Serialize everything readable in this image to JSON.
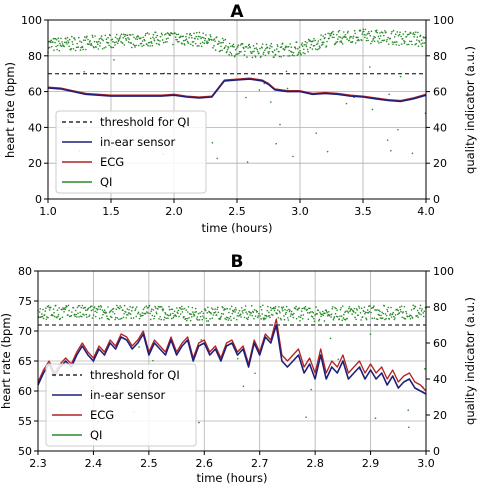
{
  "chart_data": [
    {
      "type": "line",
      "title": "A",
      "xlabel": "time (hours)",
      "ylabel": "heart rate (bpm)",
      "ylabel_right": "quality indicator (a.u.)",
      "xlim": [
        1.0,
        4.0
      ],
      "ylim": [
        0,
        100
      ],
      "ylim_right": [
        0,
        100
      ],
      "xticks": [
        "1.0",
        "1.5",
        "2.0",
        "2.5",
        "3.0",
        "3.5",
        "4.0"
      ],
      "xtick_values": [
        1.0,
        1.5,
        2.0,
        2.5,
        3.0,
        3.5,
        4.0
      ],
      "yticks": [
        "0",
        "20",
        "40",
        "60",
        "80",
        "100"
      ],
      "ytick_values": [
        0,
        20,
        40,
        60,
        80,
        100
      ],
      "yticks_right": [
        "0",
        "20",
        "40",
        "60",
        "80",
        "100"
      ],
      "grid": true,
      "legend_position": "lower-left",
      "threshold": 70,
      "series": [
        {
          "name": "threshold for QI",
          "style": "dashed",
          "color": "#000000",
          "y": 70
        },
        {
          "name": "in-ear sensor",
          "color": "#1f1f7a",
          "x": [
            1.0,
            1.1,
            1.2,
            1.3,
            1.4,
            1.5,
            1.6,
            1.7,
            1.8,
            1.9,
            2.0,
            2.1,
            2.2,
            2.3,
            2.4,
            2.5,
            2.6,
            2.7,
            2.75,
            2.8,
            2.9,
            3.0,
            3.1,
            3.2,
            3.3,
            3.4,
            3.5,
            3.6,
            3.7,
            3.8,
            3.9,
            4.0
          ],
          "values": [
            62,
            61.5,
            60,
            58.5,
            58,
            57.5,
            57.5,
            57.5,
            57.5,
            57.5,
            58,
            57,
            56.5,
            57,
            66,
            66.5,
            67,
            66,
            64,
            61,
            60,
            60,
            58.5,
            59,
            58.5,
            57.5,
            57,
            56,
            55,
            54.5,
            56,
            58
          ]
        },
        {
          "name": "ECG",
          "color": "#b22222",
          "x": [
            1.0,
            1.1,
            1.2,
            1.3,
            1.4,
            1.5,
            1.6,
            1.7,
            1.8,
            1.9,
            2.0,
            2.1,
            2.2,
            2.3,
            2.4,
            2.5,
            2.6,
            2.7,
            2.75,
            2.8,
            2.9,
            3.0,
            3.1,
            3.2,
            3.3,
            3.4,
            3.5,
            3.6,
            3.7,
            3.8,
            3.9,
            4.0
          ],
          "values": [
            62.5,
            62,
            60.5,
            59,
            58.5,
            58,
            58,
            58,
            58,
            58,
            58.5,
            57.5,
            57,
            57.5,
            66.5,
            67,
            67.5,
            66.5,
            64.5,
            61.5,
            60.5,
            60.5,
            59,
            59.5,
            59,
            58,
            57.5,
            56.5,
            55.5,
            55,
            56.5,
            58.5
          ]
        },
        {
          "name": "QI",
          "color": "#2a8a2a",
          "style": "scatter",
          "axis": "right",
          "x": [
            1.0,
            1.25,
            1.5,
            1.75,
            2.0,
            2.25,
            2.5,
            2.75,
            3.0,
            3.25,
            3.5,
            3.75,
            4.0
          ],
          "values": [
            86,
            87,
            88,
            89,
            90,
            89,
            83,
            83,
            84,
            90,
            91,
            90,
            89
          ]
        }
      ]
    },
    {
      "type": "line",
      "title": "B",
      "xlabel": "time (hours)",
      "ylabel": "heart rate (bpm)",
      "ylabel_right": "quality indicator (a.u.)",
      "xlim": [
        2.3,
        3.0
      ],
      "ylim": [
        50,
        80
      ],
      "ylim_right": [
        0,
        100
      ],
      "xticks": [
        "2.3",
        "2.4",
        "2.5",
        "2.6",
        "2.7",
        "2.8",
        "2.9",
        "3.0"
      ],
      "xtick_values": [
        2.3,
        2.4,
        2.5,
        2.6,
        2.7,
        2.8,
        2.9,
        3.0
      ],
      "yticks": [
        "50",
        "55",
        "60",
        "65",
        "70",
        "75",
        "80"
      ],
      "ytick_values": [
        50,
        55,
        60,
        65,
        70,
        75,
        80
      ],
      "yticks_right": [
        "0",
        "20",
        "40",
        "60",
        "80",
        "100"
      ],
      "ytick_values_right": [
        0,
        20,
        40,
        60,
        80,
        100
      ],
      "grid": true,
      "legend_position": "lower-left",
      "threshold": 70,
      "series": [
        {
          "name": "threshold for QI",
          "style": "dashed",
          "color": "#000000",
          "y": 70
        },
        {
          "name": "in-ear sensor",
          "color": "#1f1f7a",
          "x": [
            2.3,
            2.31,
            2.32,
            2.33,
            2.34,
            2.35,
            2.36,
            2.37,
            2.38,
            2.39,
            2.4,
            2.41,
            2.42,
            2.43,
            2.44,
            2.45,
            2.46,
            2.47,
            2.48,
            2.49,
            2.5,
            2.51,
            2.52,
            2.53,
            2.54,
            2.55,
            2.56,
            2.57,
            2.58,
            2.59,
            2.6,
            2.61,
            2.62,
            2.63,
            2.64,
            2.65,
            2.66,
            2.67,
            2.68,
            2.69,
            2.7,
            2.71,
            2.72,
            2.73,
            2.74,
            2.75,
            2.76,
            2.77,
            2.78,
            2.79,
            2.8,
            2.81,
            2.82,
            2.83,
            2.84,
            2.85,
            2.86,
            2.87,
            2.88,
            2.89,
            2.9,
            2.91,
            2.92,
            2.93,
            2.94,
            2.95,
            2.96,
            2.97,
            2.98,
            2.99,
            3.0
          ],
          "values": [
            61,
            63,
            64.5,
            62.5,
            64,
            65,
            64,
            66,
            67.5,
            66,
            65,
            67,
            66,
            68,
            67,
            69,
            68.5,
            67,
            68,
            69.5,
            66,
            68,
            67,
            66,
            68.5,
            66,
            67.5,
            68.5,
            65,
            67.5,
            68,
            66,
            67,
            65,
            67.5,
            68,
            66,
            67,
            64,
            68,
            66,
            69,
            68,
            71,
            65,
            64,
            65,
            66,
            63,
            64.5,
            62,
            66,
            62,
            64,
            63,
            65,
            62,
            63,
            64,
            62,
            63.5,
            62,
            63,
            61,
            62.5,
            60.5,
            61.5,
            62,
            60.5,
            60,
            59.5
          ]
        },
        {
          "name": "ECG",
          "color": "#b22222",
          "x": [
            2.3,
            2.31,
            2.32,
            2.33,
            2.34,
            2.35,
            2.36,
            2.37,
            2.38,
            2.39,
            2.4,
            2.41,
            2.42,
            2.43,
            2.44,
            2.45,
            2.46,
            2.47,
            2.48,
            2.49,
            2.5,
            2.51,
            2.52,
            2.53,
            2.54,
            2.55,
            2.56,
            2.57,
            2.58,
            2.59,
            2.6,
            2.61,
            2.62,
            2.63,
            2.64,
            2.65,
            2.66,
            2.67,
            2.68,
            2.69,
            2.7,
            2.71,
            2.72,
            2.73,
            2.74,
            2.75,
            2.76,
            2.77,
            2.78,
            2.79,
            2.8,
            2.81,
            2.82,
            2.83,
            2.84,
            2.85,
            2.86,
            2.87,
            2.88,
            2.89,
            2.9,
            2.91,
            2.92,
            2.93,
            2.94,
            2.95,
            2.96,
            2.97,
            2.98,
            2.99,
            3.0
          ],
          "values": [
            61.5,
            63.5,
            65,
            63,
            64.5,
            65.5,
            64.5,
            66.5,
            68,
            66.5,
            65.5,
            67.5,
            66.5,
            68.5,
            67.5,
            69.5,
            69,
            67.5,
            68.5,
            70,
            66.5,
            68.5,
            67.5,
            66.5,
            69,
            66.5,
            68,
            69,
            65.5,
            68,
            68.5,
            66.5,
            67.5,
            65.5,
            68,
            68.5,
            66.5,
            67.5,
            64.5,
            68.5,
            66.5,
            69.5,
            68.5,
            72,
            66,
            65,
            66,
            67,
            64,
            65.5,
            63,
            67,
            63,
            65,
            64,
            66,
            63,
            64,
            65,
            63,
            64.5,
            63,
            64,
            62,
            63.5,
            61.5,
            62.5,
            63,
            61.5,
            61,
            60
          ]
        },
        {
          "name": "QI",
          "color": "#2a8a2a",
          "style": "scatter",
          "axis": "right",
          "x": [
            2.3,
            2.4,
            2.5,
            2.6,
            2.7,
            2.8,
            2.9,
            3.0
          ],
          "values": [
            77,
            77,
            77,
            76,
            77,
            76,
            77,
            77
          ]
        }
      ]
    }
  ]
}
